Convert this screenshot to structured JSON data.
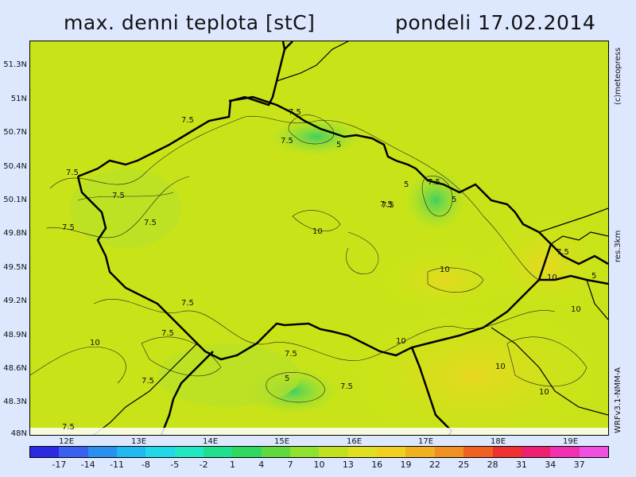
{
  "header": {
    "title": "max. denni teplota [stC]",
    "date": "pondeli 17.02.2014"
  },
  "side_labels": {
    "copyright": "(c)meteopress",
    "resolution": "res.3km",
    "model": "WRFv3.1-NMM-A"
  },
  "map": {
    "background_color": "#c8e418",
    "lat_labels": [
      "51.3N",
      "51N",
      "50.7N",
      "50.4N",
      "50.1N",
      "49.8N",
      "49.5N",
      "49.2N",
      "48.9N",
      "48.6N",
      "48.3N",
      "48N"
    ],
    "lon_labels": [
      "12E",
      "13E",
      "14E",
      "15E",
      "16E",
      "17E",
      "18E",
      "19E"
    ],
    "contour_labels": [
      "7.5",
      "7.5",
      "5",
      "7.5",
      "5",
      "7.5",
      "5",
      "7.5",
      "7.5",
      "7.5",
      "7.5",
      "10",
      "10",
      "10",
      "7.5",
      "7.5",
      "10",
      "7.5",
      "7.5",
      "7.5",
      "5",
      "10",
      "7.5",
      "10",
      "10",
      "10",
      "7.5",
      "7.5",
      "5",
      "7.5"
    ]
  },
  "colorbar": {
    "colors": [
      "#2a2ae0",
      "#3a60f0",
      "#2a90f0",
      "#20b8f0",
      "#20d8e8",
      "#20e8c0",
      "#20e090",
      "#30d860",
      "#60d840",
      "#90e030",
      "#c0e020",
      "#e0e020",
      "#f0d020",
      "#f0b020",
      "#f09020",
      "#f06020",
      "#f03030",
      "#f02070",
      "#f030b0",
      "#f050e0"
    ],
    "labels": [
      "-17",
      "-14",
      "-11",
      "-8",
      "-5",
      "-2",
      "1",
      "4",
      "7",
      "10",
      "13",
      "16",
      "19",
      "22",
      "25",
      "28",
      "31",
      "34",
      "37"
    ]
  }
}
